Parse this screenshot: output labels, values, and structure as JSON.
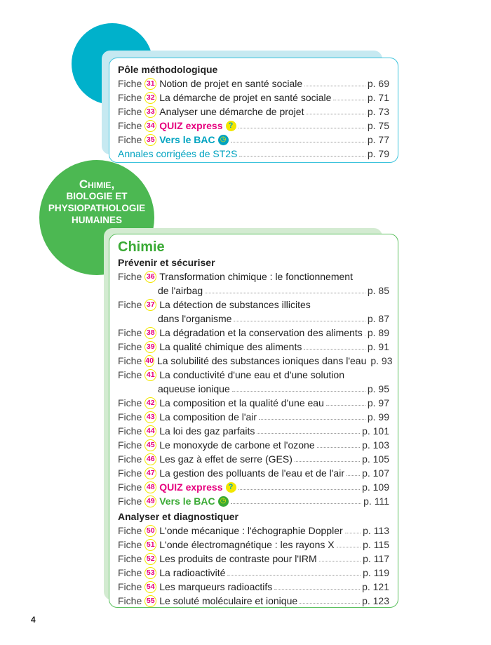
{
  "methodo": {
    "heading": "Pôle méthodologique",
    "fiche_label": "Fiche",
    "entries": [
      {
        "num": "31",
        "title": "Notion de projet en santé sociale",
        "page": "p. 69"
      },
      {
        "num": "32",
        "title": "La démarche de projet en santé sociale",
        "page": "p. 71"
      },
      {
        "num": "33",
        "title": "Analyser une démarche de projet",
        "page": "p. 73"
      },
      {
        "num": "34",
        "title": "QUIZ express",
        "page": "p. 75",
        "icon": "question-icon"
      },
      {
        "num": "35",
        "title": "Vers le BAC",
        "page": "p. 77",
        "icon": "clock-icon"
      }
    ],
    "annales": {
      "title": "Annales corrigées de ST2S",
      "page": "p. 79"
    },
    "accent": "#00b1cb"
  },
  "part": {
    "title_line1": "Chimie,",
    "title_line2": "biologie et",
    "title_line3": "physiopathologie",
    "title_line4": "humaines",
    "accent": "#4cb852"
  },
  "chimie": {
    "heading": "Chimie",
    "fiche_label": "Fiche",
    "sections": [
      {
        "title": "Prévenir et sécuriser",
        "entries": [
          {
            "num": "36",
            "title": "Transformation chimique : le fonctionnement",
            "title2": "de l'airbag",
            "page": "p. 85"
          },
          {
            "num": "37",
            "title": "La détection de substances illicites",
            "title2": "dans l'organisme",
            "page": "p. 87"
          },
          {
            "num": "38",
            "title": "La dégradation et la conservation des aliments",
            "page": "p. 89"
          },
          {
            "num": "39",
            "title": "La qualité chimique des aliments",
            "page": "p. 91"
          },
          {
            "num": "40",
            "title": "La solubilité des substances ioniques dans l'eau",
            "page": "p. 93"
          },
          {
            "num": "41",
            "title": "La conductivité d'une eau et d'une solution",
            "title2": "aqueuse ionique",
            "page": "p. 95"
          },
          {
            "num": "42",
            "title": "La composition et la qualité d'une eau",
            "page": "p. 97"
          },
          {
            "num": "43",
            "title": "La composition de l'air",
            "page": "p. 99"
          },
          {
            "num": "44",
            "title": "La loi des gaz parfaits",
            "page": "p. 101"
          },
          {
            "num": "45",
            "title": "Le monoxyde de carbone et l'ozone",
            "page": "p. 103"
          },
          {
            "num": "46",
            "title": "Les gaz à effet de serre (GES)",
            "page": "p. 105"
          },
          {
            "num": "47",
            "title": "La gestion des polluants de l'eau et de l'air",
            "page": "p. 107"
          },
          {
            "num": "48",
            "title": "QUIZ express",
            "page": "p. 109",
            "icon": "question-icon"
          },
          {
            "num": "49",
            "title": "Vers le BAC",
            "page": "p. 111",
            "icon": "clock-icon"
          }
        ]
      },
      {
        "title": "Analyser et diagnostiquer",
        "entries": [
          {
            "num": "50",
            "title": "L'onde mécanique : l'échographie Doppler",
            "page": "p. 113"
          },
          {
            "num": "51",
            "title": "L'onde électromagnétique : les rayons X",
            "page": "p. 115"
          },
          {
            "num": "52",
            "title": "Les produits de contraste pour l'IRM",
            "page": "p. 117"
          },
          {
            "num": "53",
            "title": "La radioactivité",
            "page": "p. 119"
          },
          {
            "num": "54",
            "title": "Les marqueurs radioactifs",
            "page": "p. 121"
          },
          {
            "num": "55",
            "title": "Le soluté moléculaire et ionique",
            "page": "p. 123"
          }
        ]
      }
    ]
  },
  "page_number": "4"
}
